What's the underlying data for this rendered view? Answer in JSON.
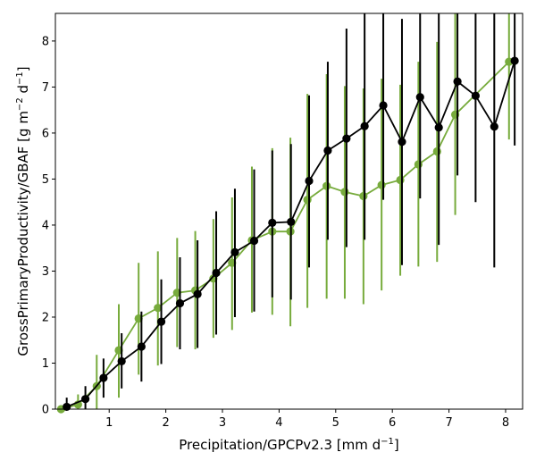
{
  "chart_data": {
    "type": "line",
    "title": "",
    "xlabel": "Precipitation/GPCPv2.3 [mm d",
    "xlabel_unit_exp": "−1",
    "xlabel_close": "]",
    "ylabel": "GrossPrimaryProductivity/GBAF [g m",
    "ylabel_unit_exp1": "−2",
    "ylabel_mid": " d",
    "ylabel_unit_exp2": "−1",
    "ylabel_close": "]",
    "xlim": [
      0.05,
      8.3
    ],
    "ylim": [
      0,
      8.6
    ],
    "xticks": [
      1,
      2,
      3,
      4,
      5,
      6,
      7,
      8
    ],
    "xtick_labels": [
      "1",
      "2",
      "3",
      "4",
      "5",
      "6",
      "7",
      "8"
    ],
    "yticks": [
      0,
      1,
      2,
      3,
      4,
      5,
      6,
      7,
      8
    ],
    "ytick_labels": [
      "0",
      "1",
      "2",
      "3",
      "4",
      "5",
      "6",
      "7",
      "8"
    ],
    "series": [
      {
        "name": "green",
        "color": "#77ab3c",
        "x": [
          0.15,
          0.45,
          0.78,
          1.17,
          1.52,
          1.86,
          2.2,
          2.52,
          2.84,
          3.17,
          3.52,
          3.88,
          4.2,
          4.5,
          4.84,
          5.16,
          5.49,
          5.81,
          6.14,
          6.46,
          6.79,
          7.11,
          8.06
        ],
        "y": [
          0.0,
          0.1,
          0.5,
          1.28,
          1.97,
          2.2,
          2.53,
          2.58,
          2.84,
          3.18,
          3.67,
          3.86,
          3.86,
          4.55,
          4.85,
          4.72,
          4.63,
          4.87,
          4.98,
          5.32,
          5.6,
          6.4,
          7.55
        ],
        "lower": [
          0.0,
          0.0,
          0.0,
          0.25,
          0.75,
          0.95,
          1.35,
          1.3,
          1.55,
          1.72,
          2.1,
          2.05,
          1.8,
          2.2,
          2.4,
          2.4,
          2.28,
          2.58,
          2.9,
          3.1,
          3.2,
          4.22,
          5.86
        ],
        "upper": [
          0.0,
          0.32,
          1.18,
          2.28,
          3.18,
          3.43,
          3.72,
          3.87,
          4.13,
          4.6,
          5.27,
          5.67,
          5.9,
          6.85,
          7.28,
          7.02,
          6.97,
          7.18,
          7.05,
          7.55,
          7.98,
          8.6,
          8.6
        ]
      },
      {
        "name": "black",
        "color": "#000000",
        "x": [
          0.25,
          0.58,
          0.9,
          1.22,
          1.57,
          1.92,
          2.25,
          2.56,
          2.89,
          3.22,
          3.56,
          3.88,
          4.21,
          4.53,
          4.86,
          5.19,
          5.51,
          5.84,
          6.17,
          6.49,
          6.82,
          7.15,
          7.47,
          7.8,
          8.16
        ],
        "y": [
          0.05,
          0.22,
          0.68,
          1.04,
          1.36,
          1.9,
          2.3,
          2.5,
          2.96,
          3.41,
          3.66,
          4.05,
          4.07,
          4.96,
          5.62,
          5.88,
          6.15,
          6.6,
          5.81,
          6.78,
          6.12,
          7.12,
          6.81,
          6.14,
          7.57
        ],
        "lower": [
          0.0,
          0.0,
          0.25,
          0.45,
          0.6,
          0.98,
          1.3,
          1.33,
          1.62,
          2.0,
          2.12,
          2.43,
          2.38,
          3.08,
          3.68,
          3.52,
          3.68,
          4.55,
          3.13,
          4.58,
          3.57,
          5.08,
          4.5,
          3.08,
          5.73
        ],
        "upper": [
          0.25,
          0.5,
          1.1,
          1.65,
          2.12,
          2.82,
          3.3,
          3.67,
          4.3,
          4.79,
          5.21,
          5.62,
          5.76,
          6.82,
          7.55,
          8.27,
          8.6,
          8.6,
          8.48,
          8.6,
          8.6,
          8.6,
          8.6,
          8.6,
          8.6
        ]
      }
    ],
    "grid": false,
    "legend": "none"
  }
}
